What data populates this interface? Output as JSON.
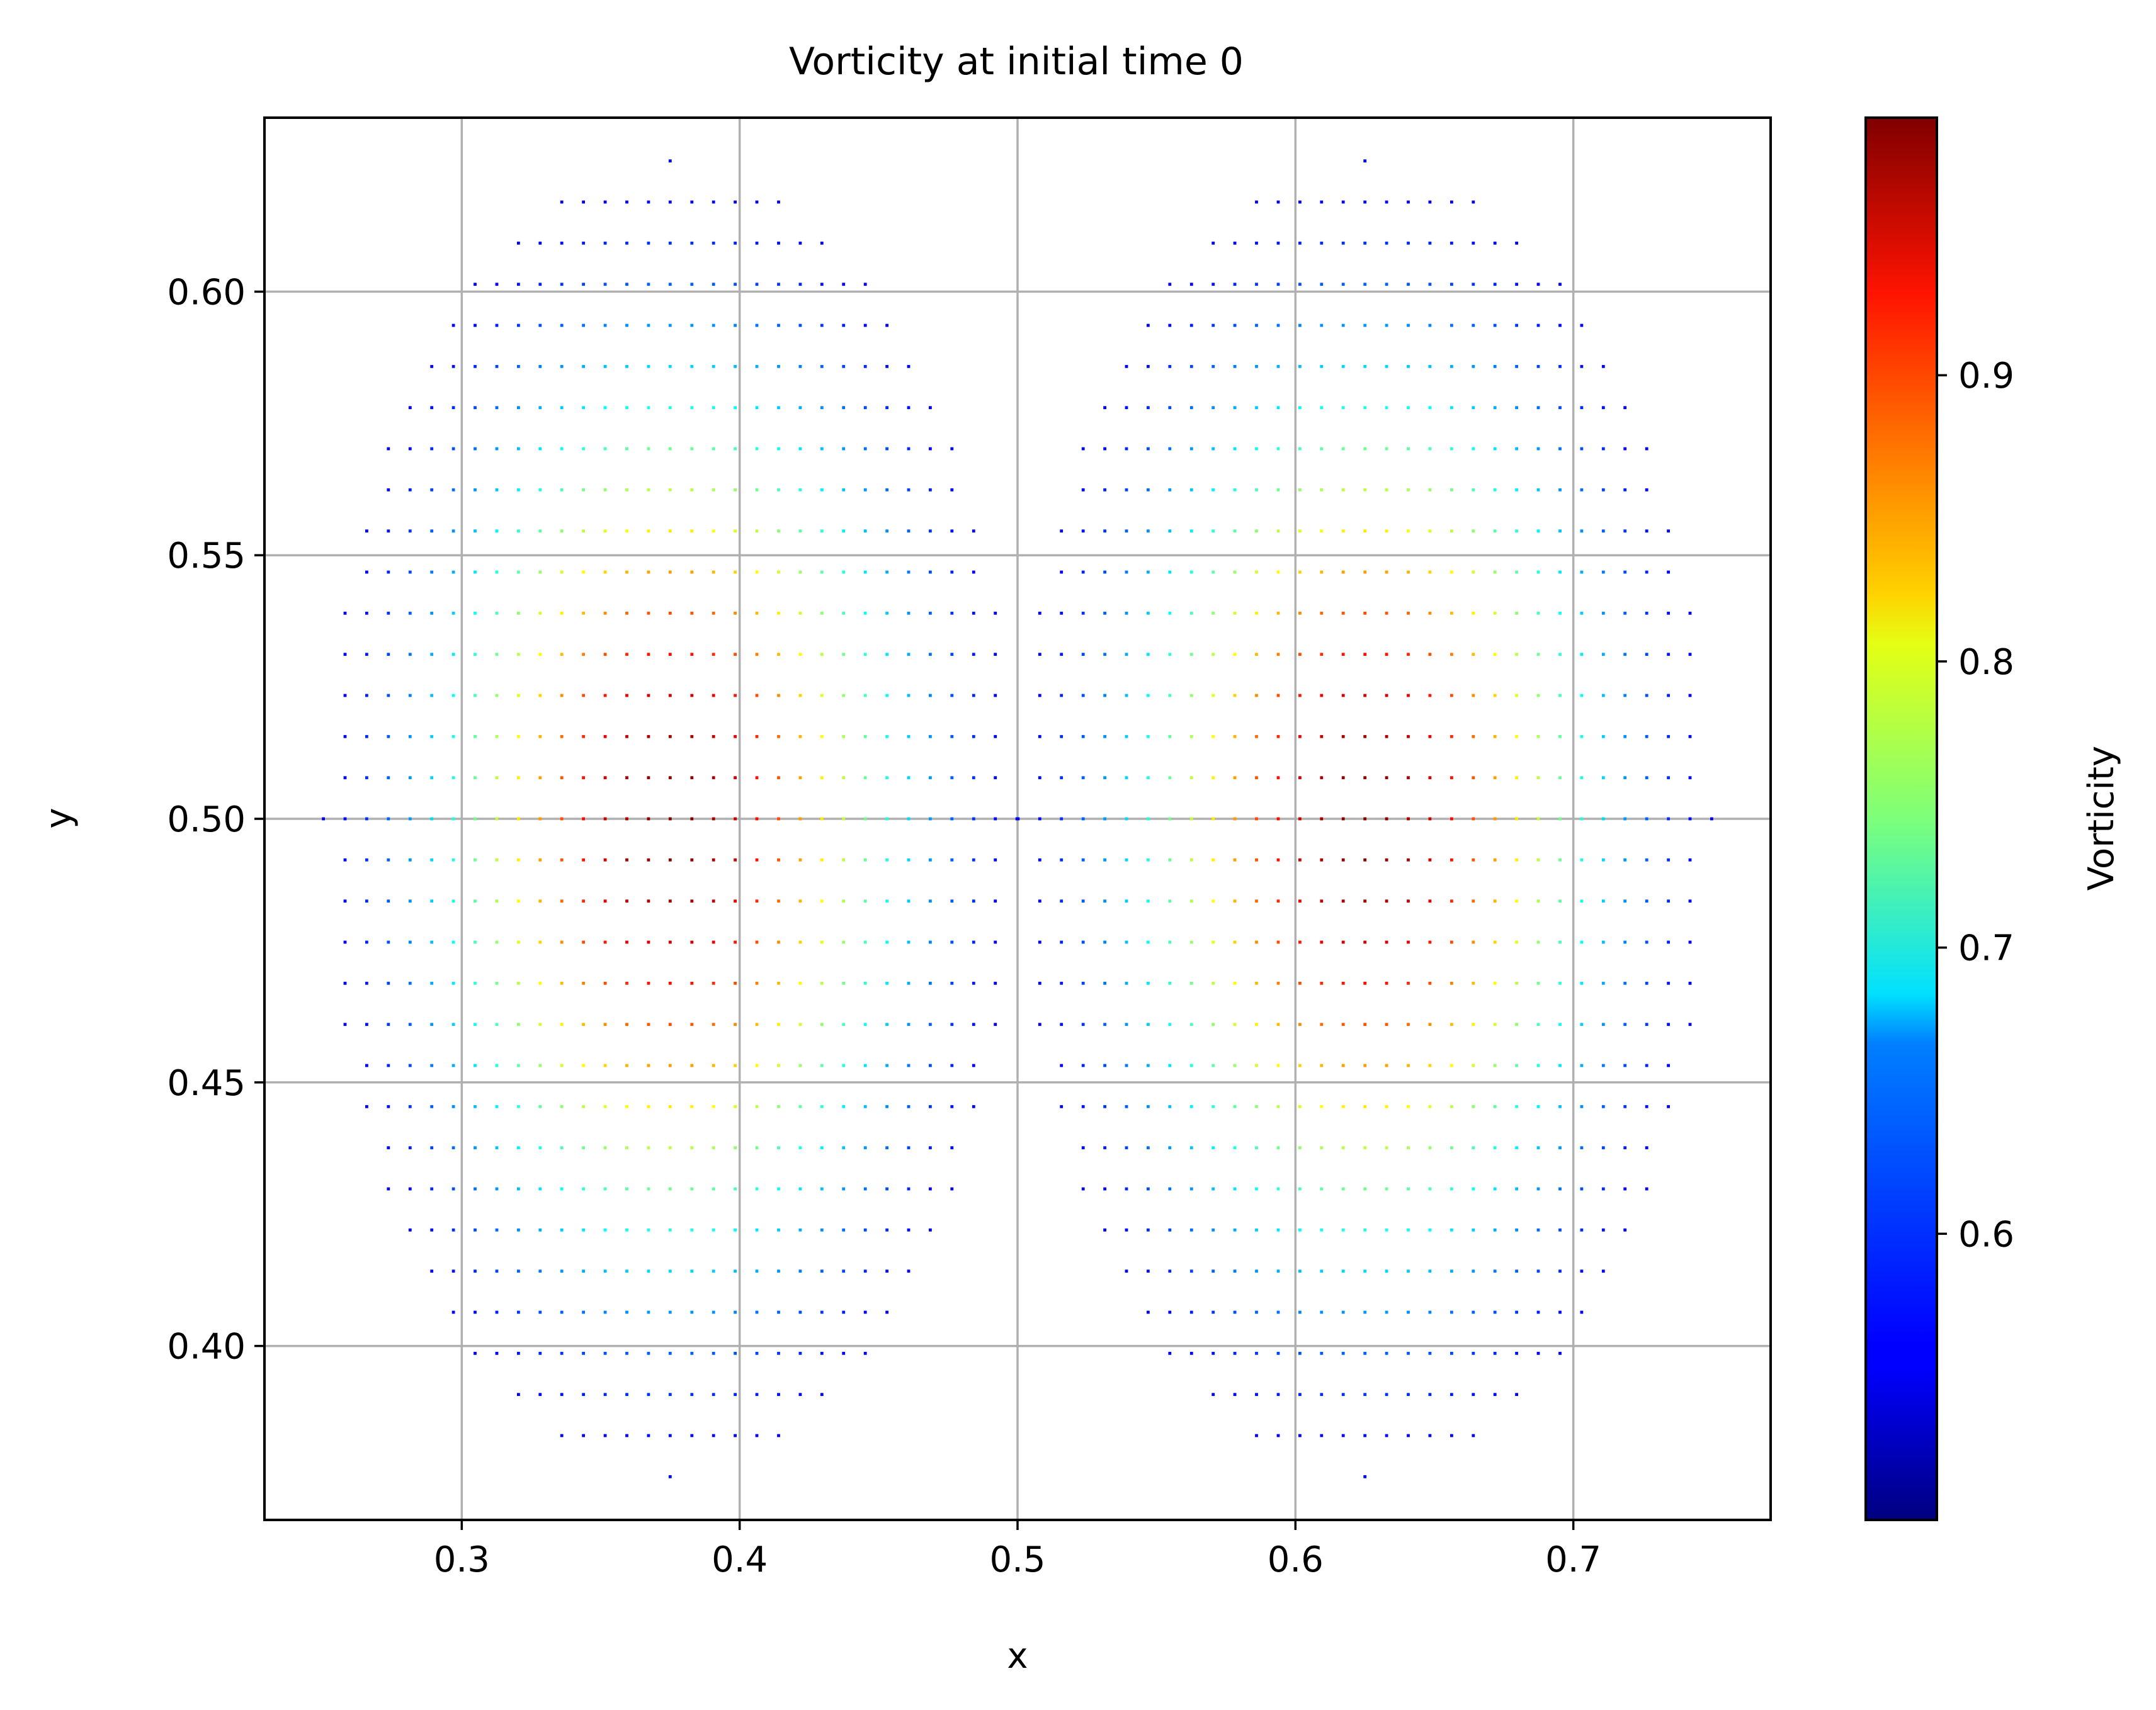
{
  "chart_data": {
    "type": "scatter",
    "title": "Vorticity at initial time 0",
    "xlabel": "x",
    "ylabel": "y",
    "xlim": [
      0.229,
      0.771
    ],
    "ylim": [
      0.367,
      0.633
    ],
    "xticks": [
      0.3,
      0.4,
      0.5,
      0.6,
      0.7
    ],
    "xtick_labels": [
      "0.3",
      "0.4",
      "0.5",
      "0.6",
      "0.7"
    ],
    "yticks": [
      0.4,
      0.45,
      0.5,
      0.55,
      0.6
    ],
    "ytick_labels": [
      "0.40",
      "0.45",
      "0.50",
      "0.55",
      "0.60"
    ],
    "grid": true,
    "colormap": "jet",
    "colorbar": {
      "label": "Vorticity",
      "vmin": 0.5,
      "vmax": 0.99,
      "ticks": [
        0.6,
        0.7,
        0.8,
        0.9
      ],
      "tick_labels": [
        "0.6",
        "0.7",
        "0.8",
        "0.9"
      ]
    },
    "point_grid": {
      "spacing": 0.0078,
      "vortices": [
        {
          "center": [
            0.375,
            0.5
          ],
          "radius": 0.125,
          "peak": 0.99,
          "edge": 0.5
        },
        {
          "center": [
            0.625,
            0.5
          ],
          "radius": 0.125,
          "peak": 0.99,
          "edge": 0.5
        }
      ]
    },
    "marker_size": "small"
  }
}
